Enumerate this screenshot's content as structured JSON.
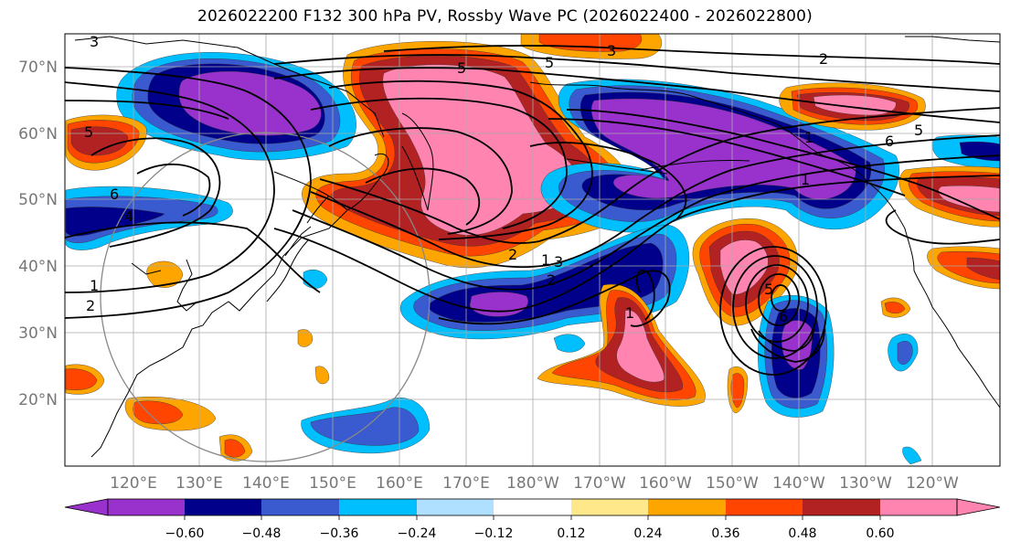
{
  "title": "2026022200 F132 300 hPa PV, Rossby Wave PC (2026022400 - 2026022800)",
  "lat_labels": [
    "70°N",
    "60°N",
    "50°N",
    "40°N",
    "30°N",
    "20°N"
  ],
  "lon_labels": [
    "120°E",
    "130°E",
    "140°E",
    "150°E",
    "160°E",
    "170°E",
    "180°W",
    "170°W",
    "160°W",
    "150°W",
    "140°W",
    "130°W",
    "120°W"
  ],
  "colorbar": {
    "colors": [
      "#9932cc",
      "#00008b",
      "#3a5bcf",
      "#00bfff",
      "#b0e0ff",
      "#ffffff",
      "#ffe88a",
      "#ffa500",
      "#ff4500",
      "#b22222",
      "#ff85b0"
    ],
    "tick_labels": [
      "−0.60",
      "−0.48",
      "−0.36",
      "−0.24",
      "−0.12",
      "0.12",
      "0.24",
      "0.36",
      "0.48",
      "0.60"
    ]
  },
  "contour_labels": [
    "3",
    "3",
    "2",
    "5",
    "5",
    "5",
    "6",
    "5",
    "6",
    "4",
    "1",
    "2",
    "1",
    "1",
    "2",
    "3",
    "2",
    "1",
    "5",
    "6",
    "1"
  ],
  "colors": {
    "coast": "#000000",
    "grid": "#aaaaaa",
    "axis_text": "#777777"
  }
}
